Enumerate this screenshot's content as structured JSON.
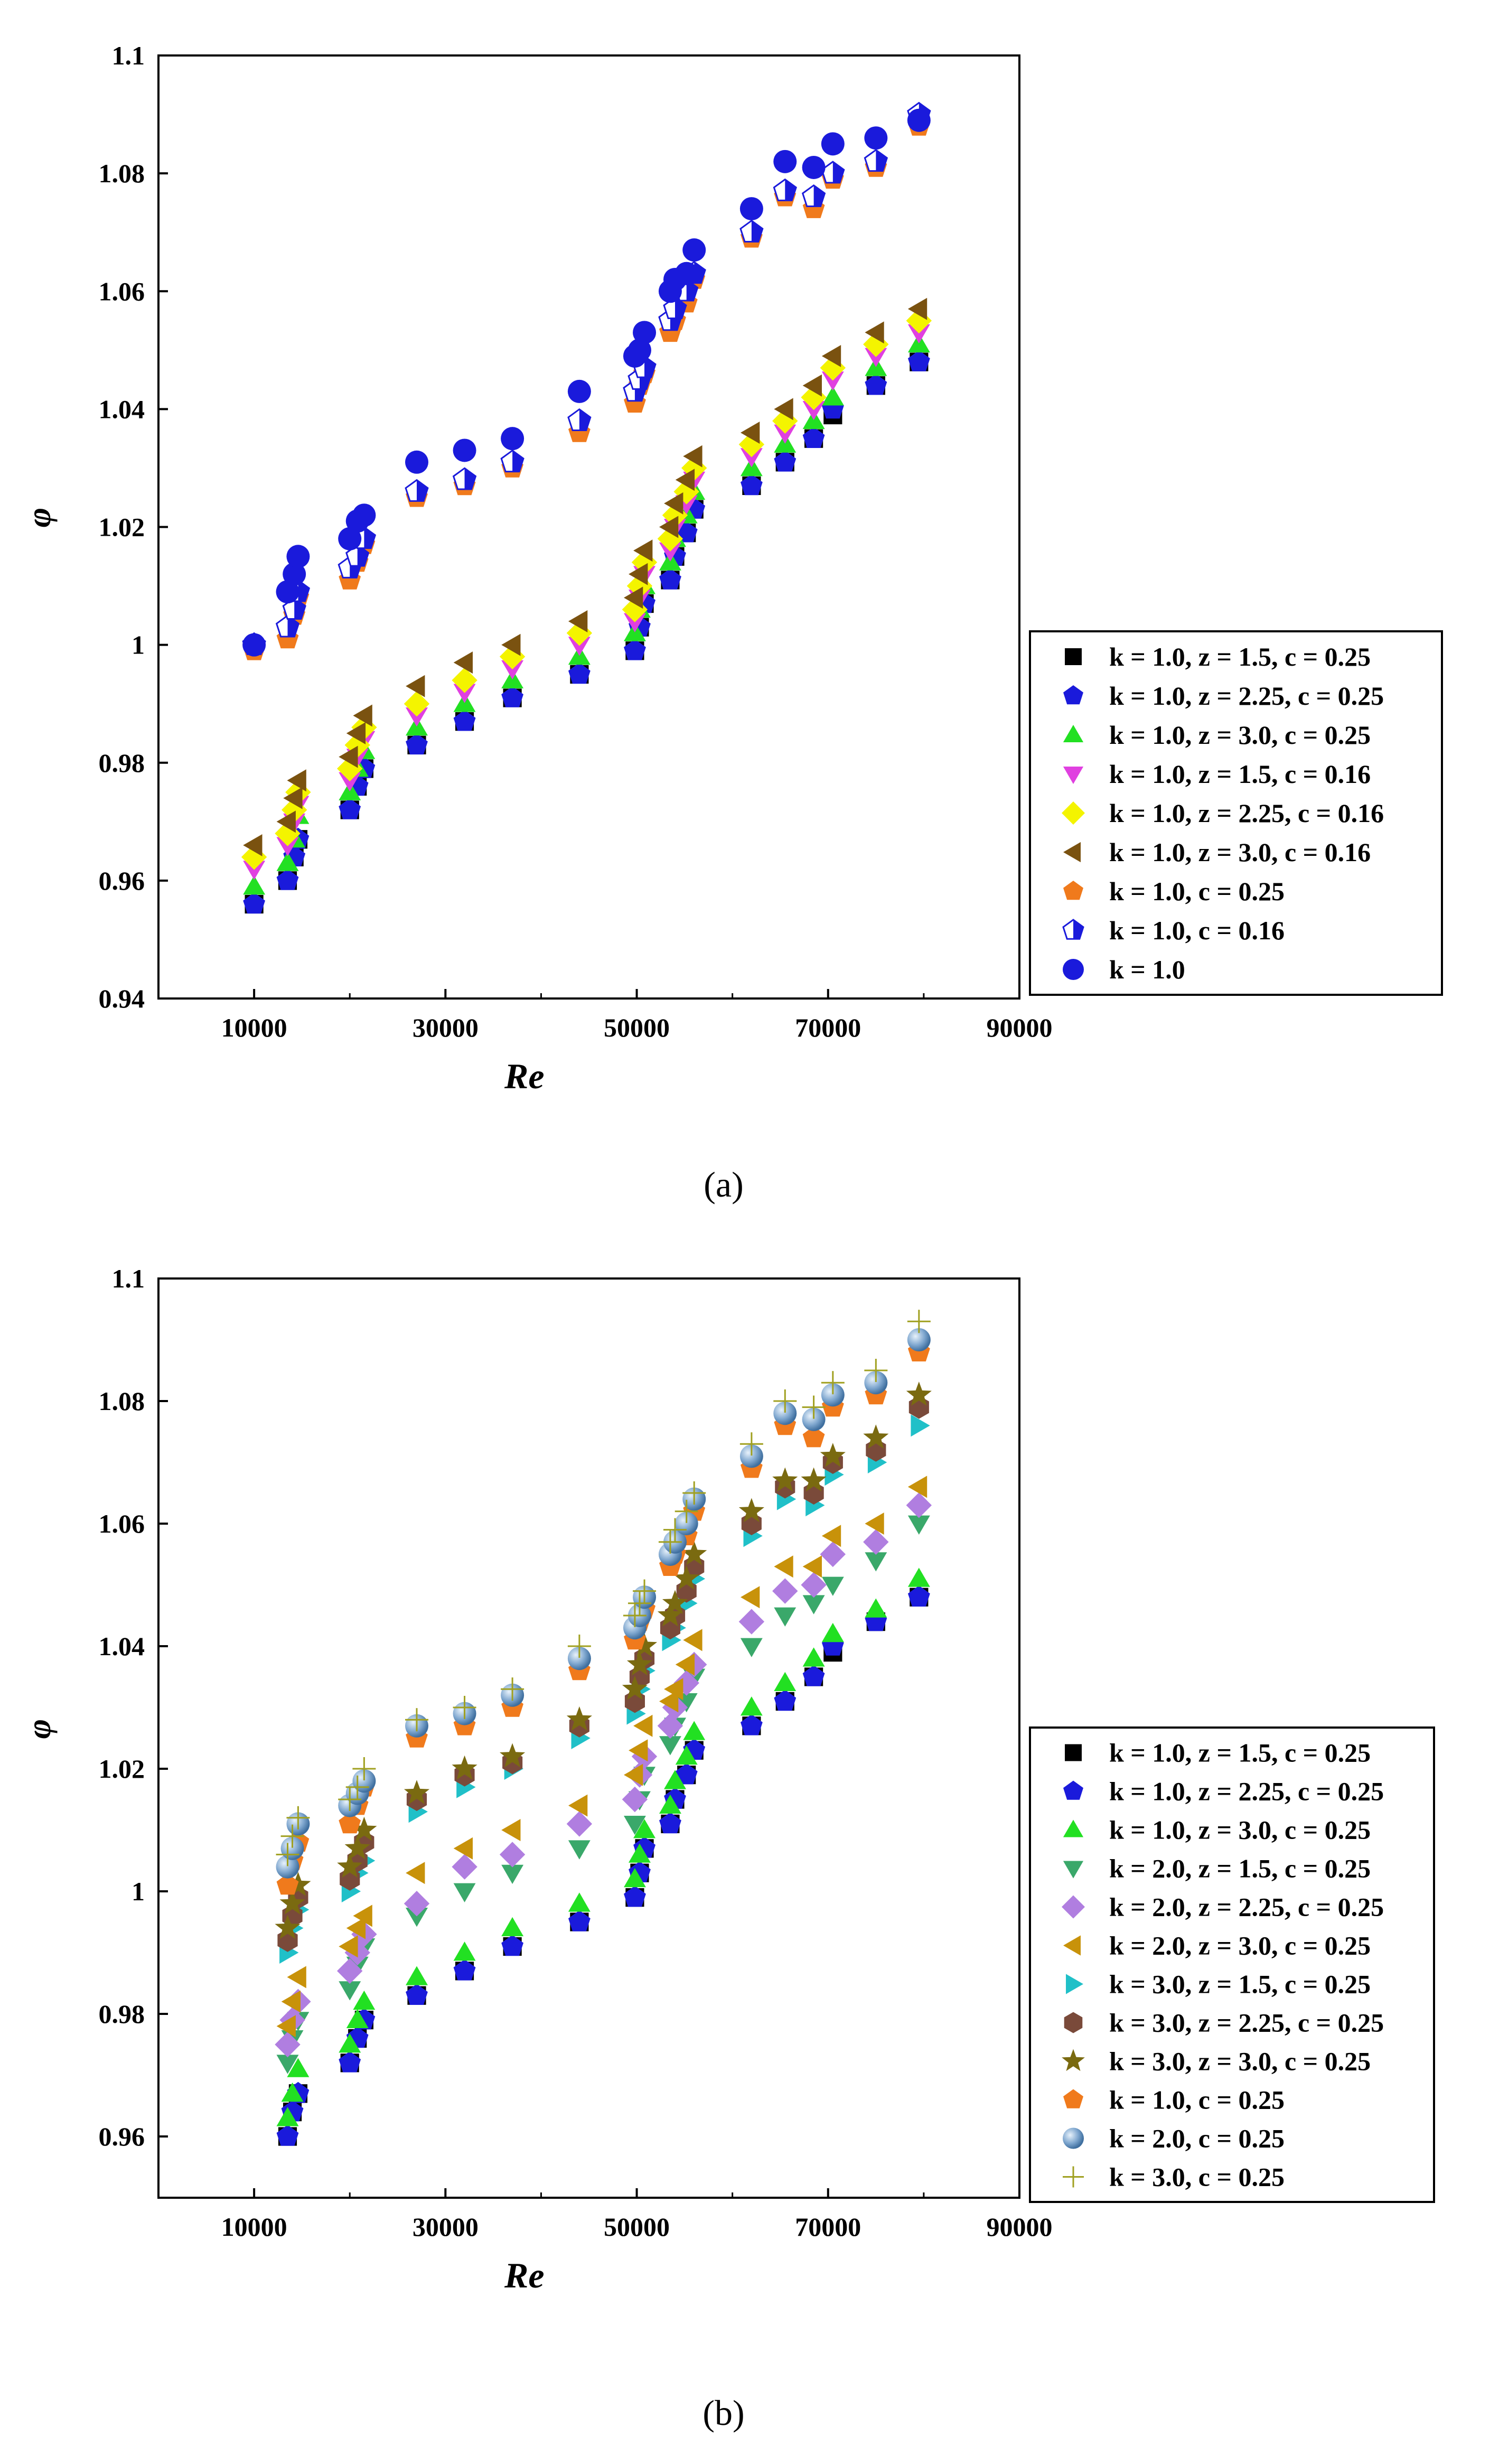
{
  "chart_data": [
    {
      "panel": "(a)",
      "type": "scatter",
      "xlabel": "Re",
      "ylabel": "φ",
      "xlim": [
        0,
        90000
      ],
      "ylim": [
        0.94,
        1.1
      ],
      "xticks": [
        10000,
        30000,
        50000,
        70000,
        90000
      ],
      "xtick_labels": [
        "10000",
        "30000",
        "50000",
        "70000",
        "90000"
      ],
      "yticks": [
        0.94,
        0.96,
        0.98,
        1.0,
        1.02,
        1.04,
        1.06,
        1.08,
        1.1
      ],
      "ytick_labels": [
        "0.94",
        "0.96",
        "0.98",
        "1",
        "1.02",
        "1.04",
        "1.06",
        "1.08",
        "1.1"
      ],
      "legend_position": "right-middle, outside plot",
      "x": [
        10000,
        13500,
        14200,
        14600,
        20000,
        20800,
        21500,
        27000,
        32000,
        37000,
        44000,
        49800,
        50300,
        50800,
        53500,
        54000,
        55200,
        56000,
        62000,
        65500,
        68500,
        70500,
        75000,
        79500
      ],
      "series": [
        {
          "name": "k = 1.0, z = 1.5, c = 0.25",
          "marker": "square",
          "color": "#000000",
          "values": [
            0.956,
            0.96,
            0.964,
            0.967,
            0.972,
            0.976,
            0.979,
            0.983,
            0.987,
            0.991,
            0.995,
            0.999,
            1.003,
            1.007,
            1.011,
            1.015,
            1.019,
            1.023,
            1.027,
            1.031,
            1.035,
            1.039,
            1.044,
            1.048
          ]
        },
        {
          "name": "k = 1.0, z = 2.25, c = 0.25",
          "marker": "pentagon",
          "color": "#1a1adb",
          "values": [
            0.956,
            0.96,
            0.964,
            0.967,
            0.972,
            0.976,
            0.979,
            0.983,
            0.987,
            0.991,
            0.995,
            0.999,
            1.003,
            1.007,
            1.011,
            1.015,
            1.019,
            1.023,
            1.027,
            1.031,
            1.035,
            1.04,
            1.044,
            1.048
          ]
        },
        {
          "name": "k = 1.0, z = 3.0, c = 0.25",
          "marker": "triangle-up",
          "color": "#22e022",
          "values": [
            0.959,
            0.963,
            0.967,
            0.971,
            0.975,
            0.979,
            0.982,
            0.986,
            0.99,
            0.994,
            0.998,
            1.002,
            1.006,
            1.01,
            1.014,
            1.018,
            1.022,
            1.026,
            1.03,
            1.034,
            1.038,
            1.042,
            1.047,
            1.051
          ]
        },
        {
          "name": "k = 1.0, z = 1.5, c = 0.16",
          "marker": "triangle-down",
          "color": "#e040e0",
          "values": [
            0.962,
            0.966,
            0.97,
            0.973,
            0.977,
            0.981,
            0.984,
            0.988,
            0.992,
            0.996,
            1.0,
            1.004,
            1.008,
            1.012,
            1.016,
            1.02,
            1.024,
            1.028,
            1.032,
            1.036,
            1.04,
            1.045,
            1.049,
            1.053
          ]
        },
        {
          "name": "k = 1.0, z = 2.25, c = 0.16",
          "marker": "diamond",
          "color": "#f4f400",
          "values": [
            0.964,
            0.968,
            0.972,
            0.975,
            0.979,
            0.983,
            0.986,
            0.99,
            0.994,
            0.998,
            1.002,
            1.006,
            1.01,
            1.014,
            1.018,
            1.022,
            1.026,
            1.03,
            1.034,
            1.038,
            1.042,
            1.047,
            1.051,
            1.055
          ]
        },
        {
          "name": "k = 1.0, z = 3.0, c = 0.16",
          "marker": "triangle-left",
          "color": "#7a5210",
          "values": [
            0.966,
            0.97,
            0.974,
            0.977,
            0.981,
            0.985,
            0.988,
            0.993,
            0.997,
            1.0,
            1.004,
            1.008,
            1.012,
            1.016,
            1.02,
            1.024,
            1.028,
            1.032,
            1.036,
            1.04,
            1.044,
            1.049,
            1.053,
            1.057
          ]
        },
        {
          "name": "k = 1.0, c = 0.25",
          "marker": "pentagon",
          "color": "#f07a1c",
          "values": [
            0.999,
            1.001,
            1.005,
            1.008,
            1.011,
            1.014,
            1.017,
            1.025,
            1.027,
            1.03,
            1.036,
            1.041,
            1.044,
            1.046,
            1.053,
            1.055,
            1.058,
            1.062,
            1.069,
            1.076,
            1.074,
            1.079,
            1.081,
            1.088
          ]
        },
        {
          "name": "k = 1.0, c = 0.16",
          "marker": "pentagon-half",
          "color": "#1a1adb",
          "values": [
            1.0,
            1.003,
            1.006,
            1.009,
            1.013,
            1.015,
            1.018,
            1.026,
            1.028,
            1.031,
            1.038,
            1.043,
            1.045,
            1.047,
            1.055,
            1.057,
            1.06,
            1.063,
            1.07,
            1.077,
            1.076,
            1.08,
            1.082,
            1.09
          ]
        },
        {
          "name": "k = 1.0",
          "marker": "circle",
          "color": "#1a1adb",
          "values": [
            1.0,
            1.009,
            1.012,
            1.015,
            1.018,
            1.021,
            1.022,
            1.031,
            1.033,
            1.035,
            1.043,
            1.049,
            1.05,
            1.053,
            1.06,
            1.062,
            1.063,
            1.067,
            1.074,
            1.082,
            1.081,
            1.085,
            1.086,
            1.089
          ]
        }
      ],
      "caption": "(a)"
    },
    {
      "panel": "(b)",
      "type": "scatter",
      "xlabel": "Re",
      "ylabel": "φ",
      "xlim": [
        0,
        90000
      ],
      "ylim": [
        0.95,
        1.1
      ],
      "xticks": [
        10000,
        30000,
        50000,
        70000,
        90000
      ],
      "xtick_labels": [
        "10000",
        "30000",
        "50000",
        "70000",
        "90000"
      ],
      "yticks": [
        0.96,
        0.98,
        1.0,
        1.02,
        1.04,
        1.06,
        1.08,
        1.1
      ],
      "ytick_labels": [
        "0.96",
        "0.98",
        "1",
        "1.02",
        "1.04",
        "1.06",
        "1.08",
        "1.1"
      ],
      "legend_position": "right-middle, outside plot",
      "x": [
        13500,
        14000,
        14600,
        20000,
        20800,
        21500,
        27000,
        32000,
        37000,
        44000,
        49800,
        50300,
        50800,
        53500,
        54000,
        55200,
        56000,
        62000,
        65500,
        68500,
        70500,
        75000,
        79500
      ],
      "series": [
        {
          "name": "k = 1.0, z = 1.5, c = 0.25",
          "marker": "square",
          "color": "#000000",
          "values": [
            0.96,
            0.964,
            0.967,
            0.972,
            0.976,
            0.979,
            0.983,
            0.987,
            0.991,
            0.995,
            0.999,
            1.003,
            1.007,
            1.011,
            1.015,
            1.019,
            1.023,
            1.027,
            1.031,
            1.035,
            1.039,
            1.044,
            1.048
          ]
        },
        {
          "name": "k = 1.0, z = 2.25, c = 0.25",
          "marker": "pentagon",
          "color": "#1a1adb",
          "values": [
            0.96,
            0.964,
            0.967,
            0.972,
            0.976,
            0.979,
            0.983,
            0.987,
            0.991,
            0.995,
            0.999,
            1.003,
            1.007,
            1.011,
            1.015,
            1.019,
            1.023,
            1.027,
            1.031,
            1.035,
            1.04,
            1.044,
            1.048
          ]
        },
        {
          "name": "k = 1.0, z = 3.0, c = 0.25",
          "marker": "triangle-up",
          "color": "#22e022",
          "values": [
            0.963,
            0.967,
            0.971,
            0.975,
            0.979,
            0.982,
            0.986,
            0.99,
            0.994,
            0.998,
            1.002,
            1.006,
            1.01,
            1.014,
            1.018,
            1.022,
            1.026,
            1.03,
            1.034,
            1.038,
            1.042,
            1.046,
            1.051
          ]
        },
        {
          "name": "k = 2.0, z = 1.5, c = 0.25",
          "marker": "triangle-down",
          "color": "#3aa86a",
          "values": [
            0.972,
            0.976,
            0.979,
            0.984,
            0.988,
            0.991,
            0.996,
            1.0,
            1.003,
            1.007,
            1.011,
            1.015,
            1.019,
            1.024,
            1.027,
            1.031,
            1.035,
            1.04,
            1.045,
            1.047,
            1.05,
            1.054,
            1.06
          ]
        },
        {
          "name": "k = 2.0, z = 2.25, c = 0.25",
          "marker": "diamond",
          "color": "#b07ee0",
          "values": [
            0.975,
            0.979,
            0.982,
            0.987,
            0.99,
            0.993,
            0.998,
            1.004,
            1.006,
            1.011,
            1.015,
            1.019,
            1.022,
            1.027,
            1.03,
            1.034,
            1.037,
            1.044,
            1.049,
            1.05,
            1.055,
            1.057,
            1.063
          ]
        },
        {
          "name": "k = 2.0, z = 3.0, c = 0.25",
          "marker": "triangle-left",
          "color": "#c8920a",
          "values": [
            0.978,
            0.982,
            0.986,
            0.991,
            0.994,
            0.996,
            1.003,
            1.007,
            1.01,
            1.014,
            1.019,
            1.023,
            1.027,
            1.031,
            1.033,
            1.037,
            1.041,
            1.048,
            1.053,
            1.053,
            1.058,
            1.06,
            1.066
          ]
        },
        {
          "name": "k = 3.0, z = 1.5, c = 0.25",
          "marker": "triangle-right",
          "color": "#20c0c8",
          "values": [
            0.99,
            0.994,
            0.997,
            1.0,
            1.003,
            1.005,
            1.013,
            1.017,
            1.02,
            1.025,
            1.029,
            1.033,
            1.036,
            1.041,
            1.043,
            1.047,
            1.051,
            1.058,
            1.064,
            1.063,
            1.068,
            1.07,
            1.076
          ]
        },
        {
          "name": "k = 3.0, z = 2.25, c = 0.25",
          "marker": "hexagon",
          "color": "#7a4a3a",
          "values": [
            0.992,
            0.996,
            0.999,
            1.002,
            1.005,
            1.008,
            1.015,
            1.019,
            1.021,
            1.027,
            1.031,
            1.035,
            1.038,
            1.043,
            1.045,
            1.049,
            1.053,
            1.06,
            1.066,
            1.065,
            1.07,
            1.072,
            1.079
          ]
        },
        {
          "name": "k = 3.0, z = 3.0, c = 0.25",
          "marker": "star",
          "color": "#7a6a10",
          "values": [
            0.994,
            0.998,
            1.001,
            1.004,
            1.007,
            1.01,
            1.016,
            1.02,
            1.022,
            1.028,
            1.033,
            1.037,
            1.04,
            1.045,
            1.047,
            1.051,
            1.055,
            1.062,
            1.067,
            1.067,
            1.071,
            1.074,
            1.081
          ]
        },
        {
          "name": "k = 1.0, c = 0.25",
          "marker": "pentagon",
          "color": "#f07a1c",
          "values": [
            1.001,
            1.005,
            1.008,
            1.011,
            1.014,
            1.017,
            1.025,
            1.027,
            1.03,
            1.036,
            1.041,
            1.044,
            1.046,
            1.053,
            1.055,
            1.058,
            1.062,
            1.069,
            1.076,
            1.074,
            1.079,
            1.081,
            1.088
          ]
        },
        {
          "name": "k = 2.0, c = 0.25",
          "marker": "sphere",
          "color": "#6f9fcf",
          "values": [
            1.004,
            1.007,
            1.011,
            1.014,
            1.016,
            1.018,
            1.027,
            1.029,
            1.032,
            1.038,
            1.043,
            1.045,
            1.048,
            1.055,
            1.057,
            1.06,
            1.064,
            1.071,
            1.078,
            1.077,
            1.081,
            1.083,
            1.09
          ]
        },
        {
          "name": "k = 3.0, c = 0.25",
          "marker": "plus",
          "color": "#a0a020",
          "values": [
            1.006,
            1.009,
            1.012,
            1.015,
            1.017,
            1.02,
            1.028,
            1.03,
            1.033,
            1.04,
            1.045,
            1.047,
            1.049,
            1.057,
            1.059,
            1.062,
            1.065,
            1.073,
            1.08,
            1.079,
            1.083,
            1.085,
            1.093
          ]
        }
      ],
      "caption": "(b)"
    }
  ]
}
